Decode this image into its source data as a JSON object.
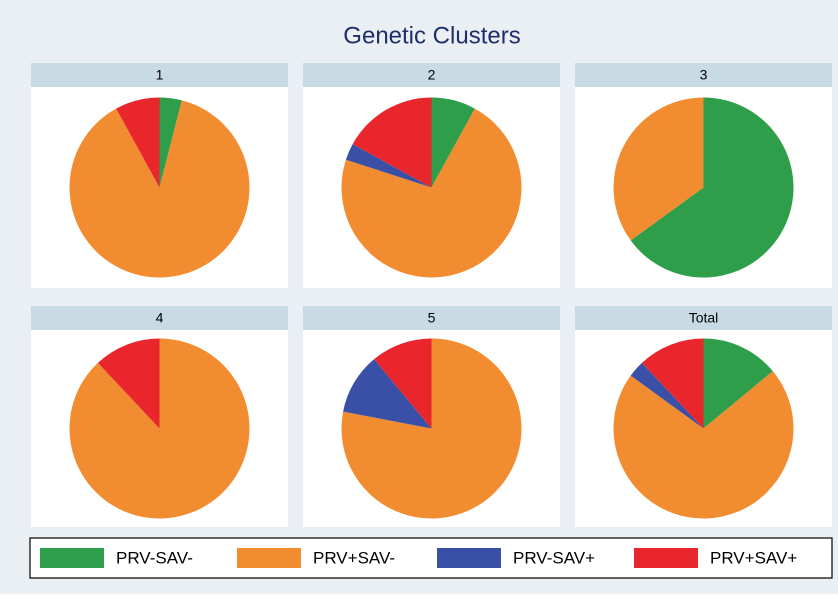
{
  "title": "Genetic Clusters",
  "legend": {
    "labels": [
      "PRV-SAV-",
      "PRV+SAV-",
      "PRV-SAV+",
      "PRV+SAV+"
    ],
    "colors": [
      "#2e9e4a",
      "#f28c30",
      "#3a50a6",
      "#e8262b"
    ]
  },
  "chart_data": [
    {
      "type": "pie",
      "title": "1",
      "values": [
        4,
        88,
        0,
        8
      ]
    },
    {
      "type": "pie",
      "title": "2",
      "values": [
        8,
        72,
        3,
        17
      ]
    },
    {
      "type": "pie",
      "title": "3",
      "values": [
        65,
        35,
        0,
        0
      ]
    },
    {
      "type": "pie",
      "title": "4",
      "values": [
        0,
        88,
        0,
        12
      ]
    },
    {
      "type": "pie",
      "title": "5",
      "values": [
        0,
        78,
        11,
        11
      ]
    },
    {
      "type": "pie",
      "title": "Total",
      "values": [
        14,
        71,
        3,
        12
      ]
    }
  ]
}
